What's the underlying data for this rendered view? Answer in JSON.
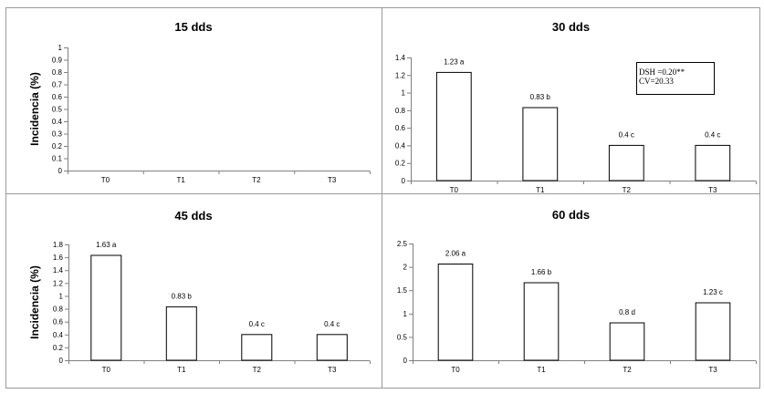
{
  "chart_data": [
    {
      "type": "bar",
      "title": "15 dds",
      "ylabel": "Incidencia (%)",
      "categories": [
        "T0",
        "T1",
        "T2",
        "T3"
      ],
      "values": [
        0,
        0,
        0,
        0
      ],
      "data_labels": [
        "",
        "",
        "",
        ""
      ],
      "ylim": [
        0,
        1
      ],
      "yticks": [
        "0",
        "0.1",
        "0.2",
        "0.3",
        "0.4",
        "0.5",
        "0.6",
        "0.7",
        "0.8",
        "0.9",
        "1"
      ],
      "grid": false,
      "legend": null,
      "annotation": []
    },
    {
      "type": "bar",
      "title": "30 dds",
      "ylabel": "",
      "categories": [
        "T0",
        "T1",
        "T2",
        "T3"
      ],
      "values": [
        1.23,
        0.83,
        0.4,
        0.4
      ],
      "data_labels": [
        "1.23 a",
        "0.83 b",
        "0.4 c",
        "0.4 c"
      ],
      "ylim": [
        0,
        1.4
      ],
      "yticks": [
        "0",
        "0.2",
        "0.4",
        "0.6",
        "0.8",
        "1",
        "1.2",
        "1.4"
      ],
      "grid": false,
      "legend": null,
      "annotation": [
        "DSH =0.20**",
        "CV=20.33"
      ]
    },
    {
      "type": "bar",
      "title": "45 dds",
      "ylabel": "Incidencia (%)",
      "categories": [
        "T0",
        "T1",
        "T2",
        "T3"
      ],
      "values": [
        1.63,
        0.83,
        0.4,
        0.4
      ],
      "data_labels": [
        "1.63 a",
        "0.83 b",
        "0.4 c",
        "0.4 c"
      ],
      "ylim": [
        0,
        1.8
      ],
      "yticks": [
        "0",
        "0.2",
        "0.4",
        "0.6",
        "0.8",
        "1",
        "1.2",
        "1.4",
        "1.6",
        "1.8"
      ],
      "grid": false,
      "legend": null,
      "annotation": []
    },
    {
      "type": "bar",
      "title": "60 dds",
      "ylabel": "",
      "categories": [
        "T0",
        "T1",
        "T2",
        "T3"
      ],
      "values": [
        2.06,
        1.66,
        0.8,
        1.23
      ],
      "data_labels": [
        "2.06 a",
        "1.66 b",
        "0.8 d",
        "1.23 c"
      ],
      "ylim": [
        0,
        2.5
      ],
      "yticks": [
        "0",
        "0.5",
        "1",
        "1.5",
        "2",
        "2.5"
      ],
      "grid": false,
      "legend": null,
      "annotation": []
    }
  ]
}
